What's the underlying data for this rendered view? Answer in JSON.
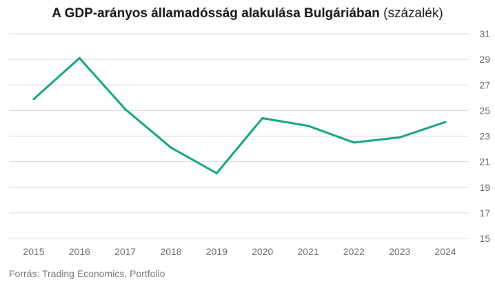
{
  "chart": {
    "title_main": "A GDP-arányos államadósság alakulása Bulgáriában",
    "title_unit": "(százalék)",
    "source": "Forrás: Trading Economics, Portfolio"
  },
  "colors": {
    "line": "#11a27f",
    "grid": "#d6d6d6",
    "tick_text": "#666666",
    "source_text": "#777777"
  },
  "chart_data": {
    "type": "line",
    "title": "A GDP-arányos államadósság alakulása Bulgáriában (százalék)",
    "xlabel": "",
    "ylabel": "",
    "x": [
      "2015",
      "2016",
      "2017",
      "2018",
      "2019",
      "2020",
      "2021",
      "2022",
      "2023",
      "2024"
    ],
    "series": [
      {
        "values": [
          25.9,
          29.1,
          25.1,
          22.1,
          20.1,
          24.4,
          23.8,
          22.5,
          22.9,
          24.1
        ]
      }
    ],
    "ylim": [
      15,
      31
    ],
    "yticks": [
      15,
      17,
      19,
      21,
      23,
      25,
      27,
      29,
      31
    ],
    "y_axis_side": "right",
    "grid": true,
    "legend": "none"
  }
}
